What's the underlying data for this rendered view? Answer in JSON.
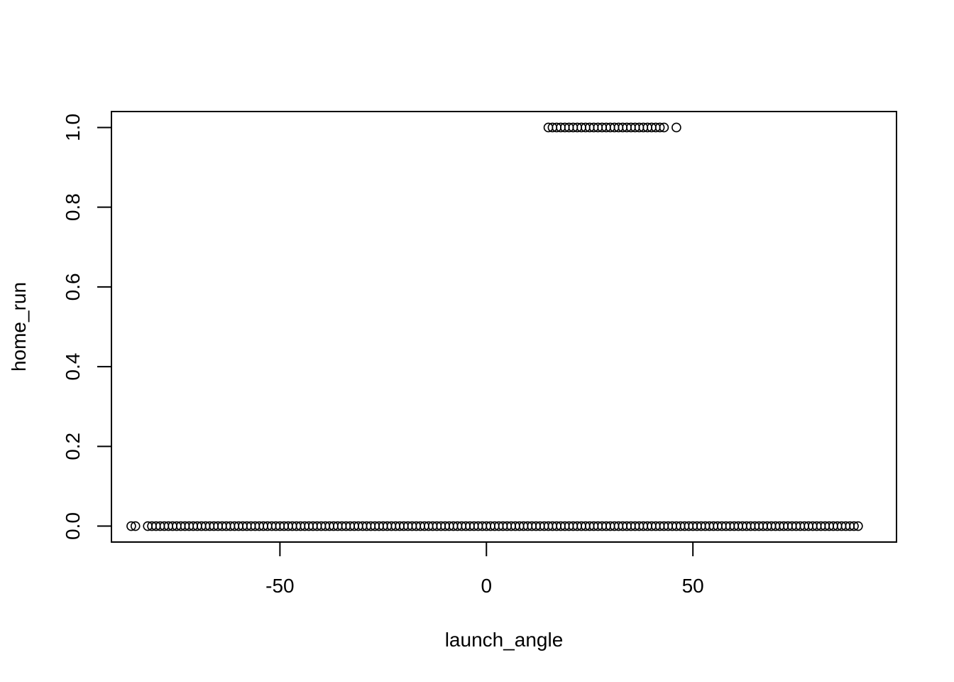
{
  "chart_data": {
    "type": "scatter",
    "title": "",
    "xlabel": "launch_angle",
    "ylabel": "home_run",
    "xlim": [
      -90.8,
      99.3
    ],
    "ylim": [
      -0.04,
      1.04
    ],
    "x_ticks": [
      -50,
      0,
      50
    ],
    "x_tick_labels": [
      "-50",
      "0",
      "50"
    ],
    "y_ticks": [
      0,
      0.2,
      0.4,
      0.6,
      0.8,
      1
    ],
    "y_tick_labels": [
      "0.0",
      "0.2",
      "0.4",
      "0.6",
      "0.8",
      "1.0"
    ],
    "grid": false,
    "legend": "none",
    "marker": "open-circle",
    "colors": {
      "marker": "#000000",
      "frame": "#000000",
      "background": "#ffffff"
    },
    "points_y0": [
      -86,
      -85,
      -82,
      -81,
      -80,
      -79,
      -78,
      -77,
      -76,
      -75,
      -74,
      -73,
      -72,
      -71,
      -70,
      -69,
      -68,
      -67,
      -66,
      -65,
      -64,
      -63,
      -62,
      -61,
      -60,
      -59,
      -58,
      -57,
      -56,
      -55,
      -54,
      -53,
      -52,
      -51,
      -50,
      -49,
      -48,
      -47,
      -46,
      -45,
      -44,
      -43,
      -42,
      -41,
      -40,
      -39,
      -38,
      -37,
      -36,
      -35,
      -34,
      -33,
      -32,
      -31,
      -30,
      -29,
      -28,
      -27,
      -26,
      -25,
      -24,
      -23,
      -22,
      -21,
      -20,
      -19,
      -18,
      -17,
      -16,
      -15,
      -14,
      -13,
      -12,
      -11,
      -10,
      -9,
      -8,
      -7,
      -6,
      -5,
      -4,
      -3,
      -2,
      -1,
      0,
      1,
      2,
      3,
      4,
      5,
      6,
      7,
      8,
      9,
      10,
      11,
      12,
      13,
      14,
      15,
      16,
      17,
      18,
      19,
      20,
      21,
      22,
      23,
      24,
      25,
      26,
      27,
      28,
      29,
      30,
      31,
      32,
      33,
      34,
      35,
      36,
      37,
      38,
      39,
      40,
      41,
      42,
      43,
      44,
      45,
      46,
      47,
      48,
      49,
      50,
      51,
      52,
      53,
      54,
      55,
      56,
      57,
      58,
      59,
      60,
      61,
      62,
      63,
      64,
      65,
      66,
      67,
      68,
      69,
      70,
      71,
      72,
      73,
      74,
      75,
      76,
      77,
      78,
      79,
      80,
      81,
      82,
      83,
      84,
      85,
      86,
      87,
      88,
      89,
      90
    ],
    "points_y1": [
      15,
      16,
      17,
      18,
      19,
      20,
      21,
      22,
      23,
      24,
      25,
      26,
      27,
      28,
      29,
      30,
      31,
      32,
      33,
      34,
      35,
      36,
      37,
      38,
      39,
      40,
      41,
      42,
      43,
      46
    ]
  }
}
